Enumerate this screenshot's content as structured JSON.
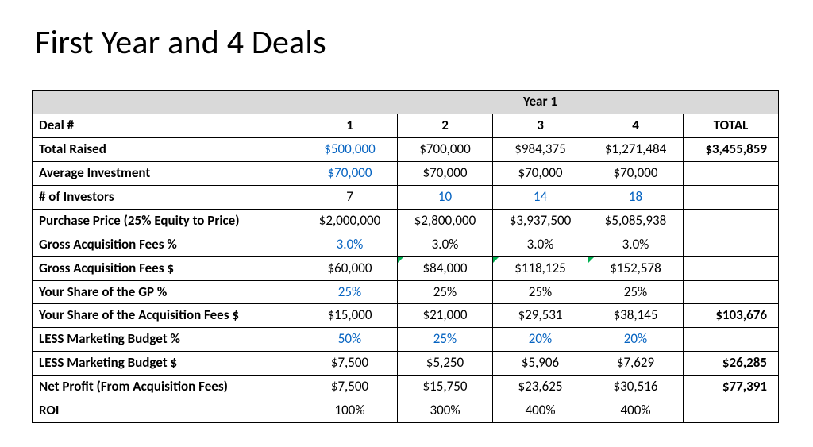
{
  "title": "First Year and 4 Deals",
  "year_label": "Year 1",
  "columns": [
    "1",
    "2",
    "3",
    "4",
    "TOTAL"
  ],
  "deal_header": "Deal #",
  "rows": [
    {
      "label": "Total Raised",
      "cells": [
        {
          "v": "$500,000",
          "blue": true
        },
        {
          "v": "$700,000"
        },
        {
          "v": "$984,375"
        },
        {
          "v": "$1,271,484"
        }
      ],
      "total": "$3,455,859"
    },
    {
      "label": "Average Investment",
      "cells": [
        {
          "v": "$70,000",
          "blue": true
        },
        {
          "v": "$70,000"
        },
        {
          "v": "$70,000"
        },
        {
          "v": "$70,000"
        }
      ],
      "total": ""
    },
    {
      "label": "# of Investors",
      "cells": [
        {
          "v": "7"
        },
        {
          "v": "10",
          "blue": true
        },
        {
          "v": "14",
          "blue": true
        },
        {
          "v": "18",
          "blue": true
        }
      ],
      "total": ""
    },
    {
      "label": "Purchase Price (25% Equity to Price)",
      "cells": [
        {
          "v": "$2,000,000"
        },
        {
          "v": "$2,800,000"
        },
        {
          "v": "$3,937,500"
        },
        {
          "v": "$5,085,938"
        }
      ],
      "total": ""
    },
    {
      "label": "Gross Acquisition Fees %",
      "cells": [
        {
          "v": "3.0%",
          "blue": true
        },
        {
          "v": "3.0%"
        },
        {
          "v": "3.0%"
        },
        {
          "v": "3.0%"
        }
      ],
      "total": ""
    },
    {
      "label": "Gross Acquisition Fees $",
      "cells": [
        {
          "v": "$60,000"
        },
        {
          "v": "$84,000",
          "tri": true
        },
        {
          "v": "$118,125",
          "tri": true
        },
        {
          "v": "$152,578",
          "tri": true
        }
      ],
      "total": ""
    },
    {
      "label": "Your Share of the GP %",
      "cells": [
        {
          "v": "25%",
          "blue": true
        },
        {
          "v": "25%"
        },
        {
          "v": "25%"
        },
        {
          "v": "25%"
        }
      ],
      "total": ""
    },
    {
      "label": "Your Share of the Acquisition Fees $",
      "cells": [
        {
          "v": "$15,000"
        },
        {
          "v": "$21,000"
        },
        {
          "v": "$29,531"
        },
        {
          "v": "$38,145"
        }
      ],
      "total": "$103,676"
    },
    {
      "label": "LESS Marketing Budget %",
      "cells": [
        {
          "v": "50%",
          "blue": true
        },
        {
          "v": "25%",
          "blue": true
        },
        {
          "v": "20%",
          "blue": true
        },
        {
          "v": "20%",
          "blue": true
        }
      ],
      "total": ""
    },
    {
      "label": "LESS Marketing Budget $",
      "cells": [
        {
          "v": "$7,500"
        },
        {
          "v": "$5,250"
        },
        {
          "v": "$5,906"
        },
        {
          "v": "$7,629"
        }
      ],
      "total": "$26,285"
    },
    {
      "label": "Net Profit (From Acquisition Fees)",
      "cells": [
        {
          "v": "$7,500"
        },
        {
          "v": "$15,750"
        },
        {
          "v": "$23,625"
        },
        {
          "v": "$30,516"
        }
      ],
      "total": "$77,391"
    },
    {
      "label": "ROI",
      "cells": [
        {
          "v": "100%"
        },
        {
          "v": "300%"
        },
        {
          "v": "400%"
        },
        {
          "v": "400%"
        }
      ],
      "total": ""
    }
  ]
}
